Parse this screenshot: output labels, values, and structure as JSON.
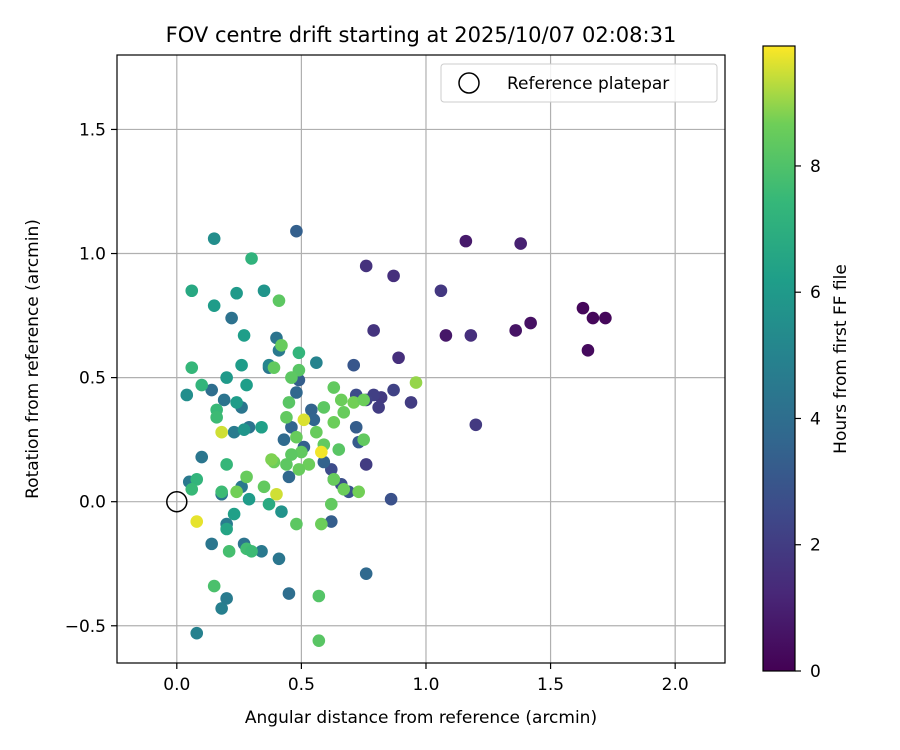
{
  "chart_data": {
    "type": "scatter",
    "title": "FOV centre drift starting at 2025/10/07 02:08:31",
    "xlabel": "Angular distance from reference (arcmin)",
    "ylabel": "Rotation from reference (arcmin)",
    "xlim": [
      -0.24,
      2.2
    ],
    "ylim": [
      -0.65,
      1.8
    ],
    "xticks": [
      0.0,
      0.5,
      1.0,
      1.5,
      2.0
    ],
    "xtick_labels": [
      "0.0",
      "0.5",
      "1.0",
      "1.5",
      "2.0"
    ],
    "yticks": [
      -0.5,
      0.0,
      0.5,
      1.0,
      1.5
    ],
    "ytick_labels": [
      "−0.5",
      "0.0",
      "0.5",
      "1.0",
      "1.5"
    ],
    "grid": true,
    "legend": {
      "position": "top-right",
      "entries": [
        "Reference platepar"
      ]
    },
    "reference_point": {
      "x": 0.0,
      "y": 0.0,
      "label": "Reference platepar"
    },
    "colorbar": {
      "label": "Hours from first FF file",
      "colormap": "viridis",
      "range": [
        0,
        9.9
      ],
      "ticks": [
        0,
        2,
        4,
        6,
        8
      ],
      "tick_labels": [
        "0",
        "2",
        "4",
        "6",
        "8"
      ]
    },
    "points": [
      {
        "x": 1.63,
        "y": 0.78,
        "h": 0.2
      },
      {
        "x": 1.67,
        "y": 0.74,
        "h": 0.2
      },
      {
        "x": 1.72,
        "y": 0.74,
        "h": 0.2
      },
      {
        "x": 1.65,
        "y": 0.61,
        "h": 0.3
      },
      {
        "x": 1.42,
        "y": 0.72,
        "h": 0.5
      },
      {
        "x": 1.36,
        "y": 0.69,
        "h": 0.6
      },
      {
        "x": 1.08,
        "y": 0.67,
        "h": 0.7
      },
      {
        "x": 1.16,
        "y": 1.05,
        "h": 0.8
      },
      {
        "x": 1.38,
        "y": 1.04,
        "h": 1.0
      },
      {
        "x": 1.18,
        "y": 0.67,
        "h": 1.5
      },
      {
        "x": 1.06,
        "y": 0.85,
        "h": 1.8
      },
      {
        "x": 0.87,
        "y": 0.91,
        "h": 1.5
      },
      {
        "x": 0.76,
        "y": 0.95,
        "h": 1.6
      },
      {
        "x": 0.79,
        "y": 0.69,
        "h": 1.7
      },
      {
        "x": 0.89,
        "y": 0.58,
        "h": 1.5
      },
      {
        "x": 1.2,
        "y": 0.31,
        "h": 1.9
      },
      {
        "x": 0.94,
        "y": 0.4,
        "h": 2.0
      },
      {
        "x": 0.87,
        "y": 0.45,
        "h": 2.2
      },
      {
        "x": 0.82,
        "y": 0.42,
        "h": 1.9
      },
      {
        "x": 0.79,
        "y": 0.43,
        "h": 2.1
      },
      {
        "x": 0.81,
        "y": 0.38,
        "h": 2.0
      },
      {
        "x": 0.76,
        "y": 0.41,
        "h": 2.2
      },
      {
        "x": 0.72,
        "y": 0.43,
        "h": 2.6
      },
      {
        "x": 0.76,
        "y": 0.15,
        "h": 2.0
      },
      {
        "x": 0.86,
        "y": 0.01,
        "h": 2.8
      },
      {
        "x": 0.76,
        "y": -0.29,
        "h": 3.8
      },
      {
        "x": 0.71,
        "y": 0.55,
        "h": 3.0
      },
      {
        "x": 0.72,
        "y": 0.3,
        "h": 3.3
      },
      {
        "x": 0.73,
        "y": 0.24,
        "h": 3.2
      },
      {
        "x": 0.69,
        "y": 0.04,
        "h": 2.9
      },
      {
        "x": 0.66,
        "y": 0.07,
        "h": 2.7
      },
      {
        "x": 0.62,
        "y": 0.13,
        "h": 2.6
      },
      {
        "x": 0.63,
        "y": 0.09,
        "h": 2.9
      },
      {
        "x": 0.62,
        "y": -0.08,
        "h": 3.3
      },
      {
        "x": 0.48,
        "y": 1.09,
        "h": 3.4
      },
      {
        "x": 0.48,
        "y": 0.44,
        "h": 3.7
      },
      {
        "x": 0.49,
        "y": 0.49,
        "h": 3.3
      },
      {
        "x": 0.54,
        "y": 0.37,
        "h": 3.5
      },
      {
        "x": 0.55,
        "y": 0.33,
        "h": 3.6
      },
      {
        "x": 0.51,
        "y": 0.22,
        "h": 3.4
      },
      {
        "x": 0.46,
        "y": 0.3,
        "h": 3.6
      },
      {
        "x": 0.43,
        "y": 0.25,
        "h": 3.8
      },
      {
        "x": 0.59,
        "y": 0.16,
        "h": 3.5
      },
      {
        "x": 0.45,
        "y": 0.1,
        "h": 3.7
      },
      {
        "x": 0.45,
        "y": -0.37,
        "h": 4.0
      },
      {
        "x": 0.4,
        "y": 0.66,
        "h": 4.3
      },
      {
        "x": 0.41,
        "y": 0.61,
        "h": 4.5
      },
      {
        "x": 0.37,
        "y": 0.54,
        "h": 4.3
      },
      {
        "x": 0.22,
        "y": 0.74,
        "h": 4.2
      },
      {
        "x": 0.14,
        "y": 0.45,
        "h": 4.0
      },
      {
        "x": 0.19,
        "y": 0.41,
        "h": 4.3
      },
      {
        "x": 0.26,
        "y": 0.38,
        "h": 4.4
      },
      {
        "x": 0.29,
        "y": 0.3,
        "h": 4.3
      },
      {
        "x": 0.23,
        "y": 0.28,
        "h": 4.6
      },
      {
        "x": 0.1,
        "y": 0.18,
        "h": 4.4
      },
      {
        "x": 0.05,
        "y": 0.08,
        "h": 4.5
      },
      {
        "x": 0.18,
        "y": 0.03,
        "h": 4.3
      },
      {
        "x": 0.26,
        "y": 0.06,
        "h": 4.5
      },
      {
        "x": 0.2,
        "y": -0.09,
        "h": 4.6
      },
      {
        "x": 0.14,
        "y": -0.17,
        "h": 4.4
      },
      {
        "x": 0.27,
        "y": -0.17,
        "h": 4.3
      },
      {
        "x": 0.34,
        "y": -0.2,
        "h": 4.5
      },
      {
        "x": 0.41,
        "y": -0.23,
        "h": 4.4
      },
      {
        "x": 0.18,
        "y": -0.43,
        "h": 4.8
      },
      {
        "x": 0.2,
        "y": -0.39,
        "h": 4.6
      },
      {
        "x": 0.08,
        "y": -0.53,
        "h": 4.9
      },
      {
        "x": 0.56,
        "y": 0.56,
        "h": 5.0
      },
      {
        "x": 0.37,
        "y": 0.55,
        "h": 5.1
      },
      {
        "x": 0.15,
        "y": 1.06,
        "h": 5.5
      },
      {
        "x": 0.35,
        "y": 0.85,
        "h": 5.8
      },
      {
        "x": 0.24,
        "y": 0.84,
        "h": 6.0
      },
      {
        "x": 0.15,
        "y": 0.79,
        "h": 6.1
      },
      {
        "x": 0.27,
        "y": 0.67,
        "h": 6.2
      },
      {
        "x": 0.26,
        "y": 0.55,
        "h": 6.1
      },
      {
        "x": 0.2,
        "y": 0.5,
        "h": 6.0
      },
      {
        "x": 0.28,
        "y": 0.47,
        "h": 6.2
      },
      {
        "x": 0.24,
        "y": 0.4,
        "h": 6.1
      },
      {
        "x": 0.04,
        "y": 0.43,
        "h": 5.5
      },
      {
        "x": 0.27,
        "y": 0.29,
        "h": 5.8
      },
      {
        "x": 0.34,
        "y": 0.3,
        "h": 6.3
      },
      {
        "x": 0.42,
        "y": -0.04,
        "h": 5.7
      },
      {
        "x": 0.29,
        "y": 0.01,
        "h": 6.1
      },
      {
        "x": 0.23,
        "y": -0.05,
        "h": 6.3
      },
      {
        "x": 0.2,
        "y": -0.11,
        "h": 6.5
      },
      {
        "x": 0.37,
        "y": -0.01,
        "h": 6.8
      },
      {
        "x": 0.06,
        "y": 0.85,
        "h": 6.7
      },
      {
        "x": 0.3,
        "y": 0.98,
        "h": 7.2
      },
      {
        "x": 0.06,
        "y": 0.54,
        "h": 7.4
      },
      {
        "x": 0.1,
        "y": 0.47,
        "h": 7.3
      },
      {
        "x": 0.16,
        "y": 0.37,
        "h": 7.5
      },
      {
        "x": 0.16,
        "y": 0.34,
        "h": 7.6
      },
      {
        "x": 0.2,
        "y": 0.15,
        "h": 7.4
      },
      {
        "x": 0.08,
        "y": 0.09,
        "h": 7.3
      },
      {
        "x": 0.06,
        "y": 0.05,
        "h": 7.5
      },
      {
        "x": 0.18,
        "y": 0.04,
        "h": 7.6
      },
      {
        "x": 0.21,
        "y": -0.2,
        "h": 7.8
      },
      {
        "x": 0.28,
        "y": -0.19,
        "h": 7.7
      },
      {
        "x": 0.3,
        "y": -0.2,
        "h": 7.6
      },
      {
        "x": 0.15,
        "y": -0.34,
        "h": 7.9
      },
      {
        "x": 0.57,
        "y": -0.38,
        "h": 8.1
      },
      {
        "x": 0.57,
        "y": -0.56,
        "h": 8.2
      },
      {
        "x": 0.41,
        "y": 0.81,
        "h": 8.3
      },
      {
        "x": 0.42,
        "y": 0.63,
        "h": 8.5
      },
      {
        "x": 0.39,
        "y": 0.54,
        "h": 8.4
      },
      {
        "x": 0.49,
        "y": 0.6,
        "h": 7.3
      },
      {
        "x": 0.49,
        "y": 0.53,
        "h": 8.2
      },
      {
        "x": 0.46,
        "y": 0.5,
        "h": 8.3
      },
      {
        "x": 0.45,
        "y": 0.4,
        "h": 8.2
      },
      {
        "x": 0.44,
        "y": 0.34,
        "h": 8.4
      },
      {
        "x": 0.48,
        "y": 0.26,
        "h": 8.5
      },
      {
        "x": 0.5,
        "y": 0.2,
        "h": 8.4
      },
      {
        "x": 0.46,
        "y": 0.19,
        "h": 8.3
      },
      {
        "x": 0.53,
        "y": 0.15,
        "h": 8.6
      },
      {
        "x": 0.49,
        "y": 0.13,
        "h": 8.5
      },
      {
        "x": 0.44,
        "y": 0.15,
        "h": 8.3
      },
      {
        "x": 0.39,
        "y": 0.16,
        "h": 8.6
      },
      {
        "x": 0.38,
        "y": 0.17,
        "h": 8.8
      },
      {
        "x": 0.35,
        "y": 0.06,
        "h": 8.4
      },
      {
        "x": 0.24,
        "y": 0.04,
        "h": 8.7
      },
      {
        "x": 0.28,
        "y": 0.1,
        "h": 8.5
      },
      {
        "x": 0.48,
        "y": -0.09,
        "h": 8.3
      },
      {
        "x": 0.58,
        "y": -0.09,
        "h": 8.6
      },
      {
        "x": 0.62,
        "y": -0.01,
        "h": 8.4
      },
      {
        "x": 0.63,
        "y": 0.09,
        "h": 8.5
      },
      {
        "x": 0.67,
        "y": 0.05,
        "h": 8.6
      },
      {
        "x": 0.73,
        "y": 0.04,
        "h": 8.7
      },
      {
        "x": 0.56,
        "y": 0.28,
        "h": 8.5
      },
      {
        "x": 0.59,
        "y": 0.23,
        "h": 8.4
      },
      {
        "x": 0.63,
        "y": 0.32,
        "h": 8.6
      },
      {
        "x": 0.59,
        "y": 0.38,
        "h": 8.3
      },
      {
        "x": 0.63,
        "y": 0.46,
        "h": 8.4
      },
      {
        "x": 0.66,
        "y": 0.41,
        "h": 8.6
      },
      {
        "x": 0.67,
        "y": 0.36,
        "h": 8.5
      },
      {
        "x": 0.71,
        "y": 0.4,
        "h": 8.7
      },
      {
        "x": 0.75,
        "y": 0.41,
        "h": 8.6
      },
      {
        "x": 0.65,
        "y": 0.21,
        "h": 8.2
      },
      {
        "x": 0.75,
        "y": 0.25,
        "h": 8.4
      },
      {
        "x": 0.96,
        "y": 0.48,
        "h": 9.0
      },
      {
        "x": 0.51,
        "y": 0.33,
        "h": 9.6
      },
      {
        "x": 0.58,
        "y": 0.2,
        "h": 9.8
      },
      {
        "x": 0.4,
        "y": 0.03,
        "h": 9.5
      },
      {
        "x": 0.18,
        "y": 0.28,
        "h": 9.5
      },
      {
        "x": 0.08,
        "y": -0.08,
        "h": 9.7
      }
    ]
  }
}
